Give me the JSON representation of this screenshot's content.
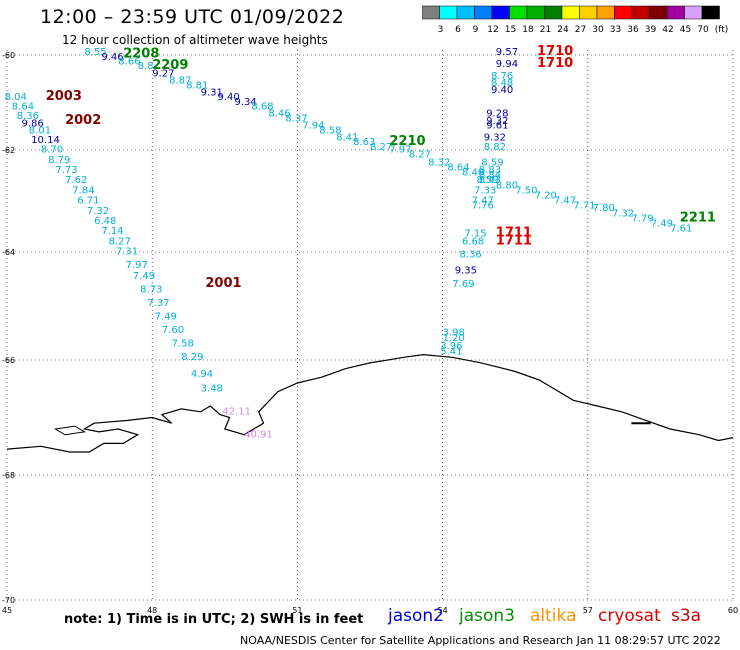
{
  "header": {
    "title": "12:00 – 23:59 UTC 01/09/2022",
    "subtitle": "12 hour collection of altimeter wave heights"
  },
  "legend": {
    "unit": "(ft)",
    "bins": [
      {
        "label": "",
        "color": "#7f7f7f"
      },
      {
        "label": "3",
        "color": "#00ffff"
      },
      {
        "label": "6",
        "color": "#00bfff"
      },
      {
        "label": "9",
        "color": "#0080ff"
      },
      {
        "label": "12",
        "color": "#0000ff"
      },
      {
        "label": "15",
        "color": "#00e000"
      },
      {
        "label": "18",
        "color": "#00b000"
      },
      {
        "label": "21",
        "color": "#008000"
      },
      {
        "label": "24",
        "color": "#ffff00"
      },
      {
        "label": "27",
        "color": "#ffd000"
      },
      {
        "label": "30",
        "color": "#ffa000"
      },
      {
        "label": "33",
        "color": "#ff0000"
      },
      {
        "label": "36",
        "color": "#c00000"
      },
      {
        "label": "39",
        "color": "#800000"
      },
      {
        "label": "42",
        "color": "#a000a0"
      },
      {
        "label": "45",
        "color": "#d8a0ff"
      },
      {
        "label": "70",
        "color": "#000000"
      }
    ]
  },
  "axes": {
    "lon_labels": [
      "45",
      "48",
      "51",
      "54",
      "57",
      "60"
    ],
    "lat_labels": [
      "-60",
      "-62",
      "-64",
      "-66",
      "-68",
      "-70"
    ]
  },
  "colors": {
    "cyan": "#00b0d8",
    "mid": "#1e78dc",
    "navy": "#0000a0",
    "darkred": "#800000",
    "red": "#e00000",
    "green": "#008000",
    "lilac": "#d08ce8"
  },
  "passes": [
    {
      "label": "2208",
      "color": "green",
      "lon": 47.4,
      "lat": -60.05
    },
    {
      "label": "2209",
      "color": "green",
      "lon": 48.0,
      "lat": -60.3
    },
    {
      "label": "2003",
      "color": "darkred",
      "lon": 45.8,
      "lat": -60.95
    },
    {
      "label": "2002",
      "color": "darkred",
      "lon": 46.2,
      "lat": -61.45
    },
    {
      "label": "2001",
      "color": "darkred",
      "lon": 49.1,
      "lat": -64.65
    },
    {
      "label": "2210",
      "color": "green",
      "lon": 52.9,
      "lat": -61.9
    },
    {
      "label": "1710",
      "color": "red",
      "lon": 55.95,
      "lat": -60.0
    },
    {
      "label": "1710",
      "color": "red",
      "lon": 55.95,
      "lat": -60.25
    },
    {
      "label": "1711",
      "color": "red",
      "lon": 55.1,
      "lat": -63.7
    },
    {
      "label": "1711",
      "color": "red",
      "lon": 55.1,
      "lat": -63.85
    },
    {
      "label": "2211",
      "color": "green",
      "lon": 58.9,
      "lat": -63.4
    }
  ],
  "readings": [
    {
      "value": "8.55",
      "color": "cyan",
      "lon": 46.6,
      "lat": -60.0
    },
    {
      "value": "9.46",
      "color": "navy",
      "lon": 46.95,
      "lat": -60.1
    },
    {
      "value": "8.66",
      "color": "cyan",
      "lon": 47.3,
      "lat": -60.2
    },
    {
      "value": "8.8",
      "color": "cyan",
      "lon": 47.7,
      "lat": -60.3
    },
    {
      "value": "9.27",
      "color": "navy",
      "lon": 48.0,
      "lat": -60.45
    },
    {
      "value": "8.87",
      "color": "cyan",
      "lon": 48.35,
      "lat": -60.6
    },
    {
      "value": "8.81",
      "color": "cyan",
      "lon": 48.7,
      "lat": -60.7
    },
    {
      "value": "9.31",
      "color": "navy",
      "lon": 49.0,
      "lat": -60.85
    },
    {
      "value": "9.40",
      "color": "navy",
      "lon": 49.35,
      "lat": -60.95
    },
    {
      "value": "9.34",
      "color": "navy",
      "lon": 49.7,
      "lat": -61.05
    },
    {
      "value": "8.68",
      "color": "cyan",
      "lon": 50.05,
      "lat": -61.15
    },
    {
      "value": "8.46",
      "color": "cyan",
      "lon": 50.4,
      "lat": -61.3
    },
    {
      "value": "8.37",
      "color": "cyan",
      "lon": 50.75,
      "lat": -61.4
    },
    {
      "value": "7.94",
      "color": "cyan",
      "lon": 51.1,
      "lat": -61.55
    },
    {
      "value": "8.58",
      "color": "cyan",
      "lon": 51.45,
      "lat": -61.65
    },
    {
      "value": "8.41",
      "color": "cyan",
      "lon": 51.8,
      "lat": -61.8
    },
    {
      "value": "8.63",
      "color": "cyan",
      "lon": 52.15,
      "lat": -61.9
    },
    {
      "value": "8.27",
      "color": "cyan",
      "lon": 52.5,
      "lat": -62.0
    },
    {
      "value": "7.97",
      "color": "cyan",
      "lon": 52.9,
      "lat": -62.05
    },
    {
      "value": "8.27",
      "color": "cyan",
      "lon": 53.3,
      "lat": -62.15
    },
    {
      "value": "8.32",
      "color": "cyan",
      "lon": 53.7,
      "lat": -62.3
    },
    {
      "value": "8.64",
      "color": "cyan",
      "lon": 54.1,
      "lat": -62.4
    },
    {
      "value": "8.40",
      "color": "cyan",
      "lon": 54.4,
      "lat": -62.5
    },
    {
      "value": "8.43",
      "color": "cyan",
      "lon": 54.75,
      "lat": -62.65
    },
    {
      "value": "8.80",
      "color": "cyan",
      "lon": 55.1,
      "lat": -62.75
    },
    {
      "value": "7.50",
      "color": "cyan",
      "lon": 55.5,
      "lat": -62.85
    },
    {
      "value": "7.20",
      "color": "cyan",
      "lon": 55.9,
      "lat": -62.95
    },
    {
      "value": "7.47",
      "color": "cyan",
      "lon": 56.3,
      "lat": -63.05
    },
    {
      "value": "7.71",
      "color": "cyan",
      "lon": 56.7,
      "lat": -63.15
    },
    {
      "value": "7.80",
      "color": "cyan",
      "lon": 57.1,
      "lat": -63.2
    },
    {
      "value": "7.32",
      "color": "cyan",
      "lon": 57.5,
      "lat": -63.3
    },
    {
      "value": "7.79",
      "color": "cyan",
      "lon": 57.9,
      "lat": -63.4
    },
    {
      "value": "7.49",
      "color": "cyan",
      "lon": 58.3,
      "lat": -63.5
    },
    {
      "value": "7.61",
      "color": "cyan",
      "lon": 58.7,
      "lat": -63.6
    },
    {
      "value": "8.04",
      "color": "cyan",
      "lon": 44.95,
      "lat": -60.95
    },
    {
      "value": "8.64",
      "color": "cyan",
      "lon": 45.1,
      "lat": -61.15
    },
    {
      "value": "8.36",
      "color": "cyan",
      "lon": 45.2,
      "lat": -61.35
    },
    {
      "value": "9.86",
      "color": "navy",
      "lon": 45.3,
      "lat": -61.5
    },
    {
      "value": "8.01",
      "color": "cyan",
      "lon": 45.45,
      "lat": -61.65
    },
    {
      "value": "10.14",
      "color": "navy",
      "lon": 45.5,
      "lat": -61.85
    },
    {
      "value": "8.70",
      "color": "cyan",
      "lon": 45.7,
      "lat": -62.05
    },
    {
      "value": "8.79",
      "color": "cyan",
      "lon": 45.85,
      "lat": -62.25
    },
    {
      "value": "7.73",
      "color": "cyan",
      "lon": 46.0,
      "lat": -62.45
    },
    {
      "value": "7.62",
      "color": "cyan",
      "lon": 46.2,
      "lat": -62.65
    },
    {
      "value": "7.84",
      "color": "cyan",
      "lon": 46.35,
      "lat": -62.85
    },
    {
      "value": "6.71",
      "color": "cyan",
      "lon": 46.45,
      "lat": -63.05
    },
    {
      "value": "7.32",
      "color": "cyan",
      "lon": 46.65,
      "lat": -63.25
    },
    {
      "value": "6.48",
      "color": "cyan",
      "lon": 46.8,
      "lat": -63.45
    },
    {
      "value": "7.14",
      "color": "cyan",
      "lon": 46.95,
      "lat": -63.65
    },
    {
      "value": "8.27",
      "color": "cyan",
      "lon": 47.1,
      "lat": -63.85
    },
    {
      "value": "7.31",
      "color": "cyan",
      "lon": 47.25,
      "lat": -64.05
    },
    {
      "value": "7.97",
      "color": "cyan",
      "lon": 47.45,
      "lat": -64.3
    },
    {
      "value": "7.49",
      "color": "cyan",
      "lon": 47.6,
      "lat": -64.5
    },
    {
      "value": "8.73",
      "color": "cyan",
      "lon": 47.75,
      "lat": -64.75
    },
    {
      "value": "7.37",
      "color": "cyan",
      "lon": 47.9,
      "lat": -65.0
    },
    {
      "value": "7.49",
      "color": "cyan",
      "lon": 48.05,
      "lat": -65.25
    },
    {
      "value": "7.60",
      "color": "cyan",
      "lon": 48.2,
      "lat": -65.5
    },
    {
      "value": "7.58",
      "color": "cyan",
      "lon": 48.4,
      "lat": -65.75
    },
    {
      "value": "8.29",
      "color": "cyan",
      "lon": 48.6,
      "lat": -66.0
    },
    {
      "value": "4.94",
      "color": "cyan",
      "lon": 48.8,
      "lat": -66.3
    },
    {
      "value": "3.48",
      "color": "cyan",
      "lon": 49.0,
      "lat": -66.55
    },
    {
      "value": "42.11",
      "color": "lilac",
      "lon": 49.45,
      "lat": -66.95
    },
    {
      "value": "40.91",
      "color": "lilac",
      "lon": 49.9,
      "lat": -67.35
    },
    {
      "value": "9.57",
      "color": "navy",
      "lon": 55.1,
      "lat": -60.0
    },
    {
      "value": "9.94",
      "color": "navy",
      "lon": 55.1,
      "lat": -60.25
    },
    {
      "value": "8.76",
      "color": "cyan",
      "lon": 55.0,
      "lat": -60.5
    },
    {
      "value": "8.48",
      "color": "cyan",
      "lon": 55.0,
      "lat": -60.65
    },
    {
      "value": "9.40",
      "color": "navy",
      "lon": 55.0,
      "lat": -60.8
    },
    {
      "value": "9.28",
      "color": "navy",
      "lon": 54.9,
      "lat": -61.3
    },
    {
      "value": "9.32",
      "color": "navy",
      "lon": 54.9,
      "lat": -61.45
    },
    {
      "value": "9.61",
      "color": "navy",
      "lon": 54.9,
      "lat": -61.55
    },
    {
      "value": "9.32",
      "color": "navy",
      "lon": 54.85,
      "lat": -61.8
    },
    {
      "value": "8.82",
      "color": "cyan",
      "lon": 54.85,
      "lat": -62.0
    },
    {
      "value": "8.59",
      "color": "cyan",
      "lon": 54.8,
      "lat": -62.3
    },
    {
      "value": "8.83",
      "color": "cyan",
      "lon": 54.75,
      "lat": -62.45
    },
    {
      "value": "8.84",
      "color": "cyan",
      "lon": 54.75,
      "lat": -62.55
    },
    {
      "value": "8.59",
      "color": "cyan",
      "lon": 54.7,
      "lat": -62.65
    },
    {
      "value": "7.33",
      "color": "cyan",
      "lon": 54.65,
      "lat": -62.85
    },
    {
      "value": "7.47",
      "color": "cyan",
      "lon": 54.6,
      "lat": -63.05
    },
    {
      "value": "7.76",
      "color": "cyan",
      "lon": 54.6,
      "lat": -63.15
    },
    {
      "value": "7.15",
      "color": "cyan",
      "lon": 54.45,
      "lat": -63.7
    },
    {
      "value": "6.68",
      "color": "cyan",
      "lon": 54.4,
      "lat": -63.85
    },
    {
      "value": "8.36",
      "color": "cyan",
      "lon": 54.35,
      "lat": -64.1
    },
    {
      "value": "9.35",
      "color": "navy",
      "lon": 54.25,
      "lat": -64.4
    },
    {
      "value": "7.69",
      "color": "cyan",
      "lon": 54.2,
      "lat": -64.65
    },
    {
      "value": "3.98",
      "color": "cyan",
      "lon": 54.0,
      "lat": -65.55
    },
    {
      "value": "1.20",
      "color": "cyan",
      "lon": 54.0,
      "lat": -65.65
    },
    {
      "value": "3.96",
      "color": "cyan",
      "lon": 53.95,
      "lat": -65.8
    },
    {
      "value": "5.41",
      "color": "cyan",
      "lon": 53.95,
      "lat": -65.9
    }
  ],
  "footer": {
    "note": "note: 1) Time is in UTC; 2) SWH is in feet",
    "credits": "NOAA/NESDIS Center for Satellite Applications and Research   Jan 11 08:29:57 UTC 2022",
    "satellites": [
      {
        "name": "jason2",
        "color": "#0000d0"
      },
      {
        "name": "jason3",
        "color": "#009000"
      },
      {
        "name": "altika",
        "color": "#ff9000"
      },
      {
        "name": "cryosat",
        "color": "#e00000"
      },
      {
        "name": "s3a",
        "color": "#c00000"
      }
    ]
  }
}
